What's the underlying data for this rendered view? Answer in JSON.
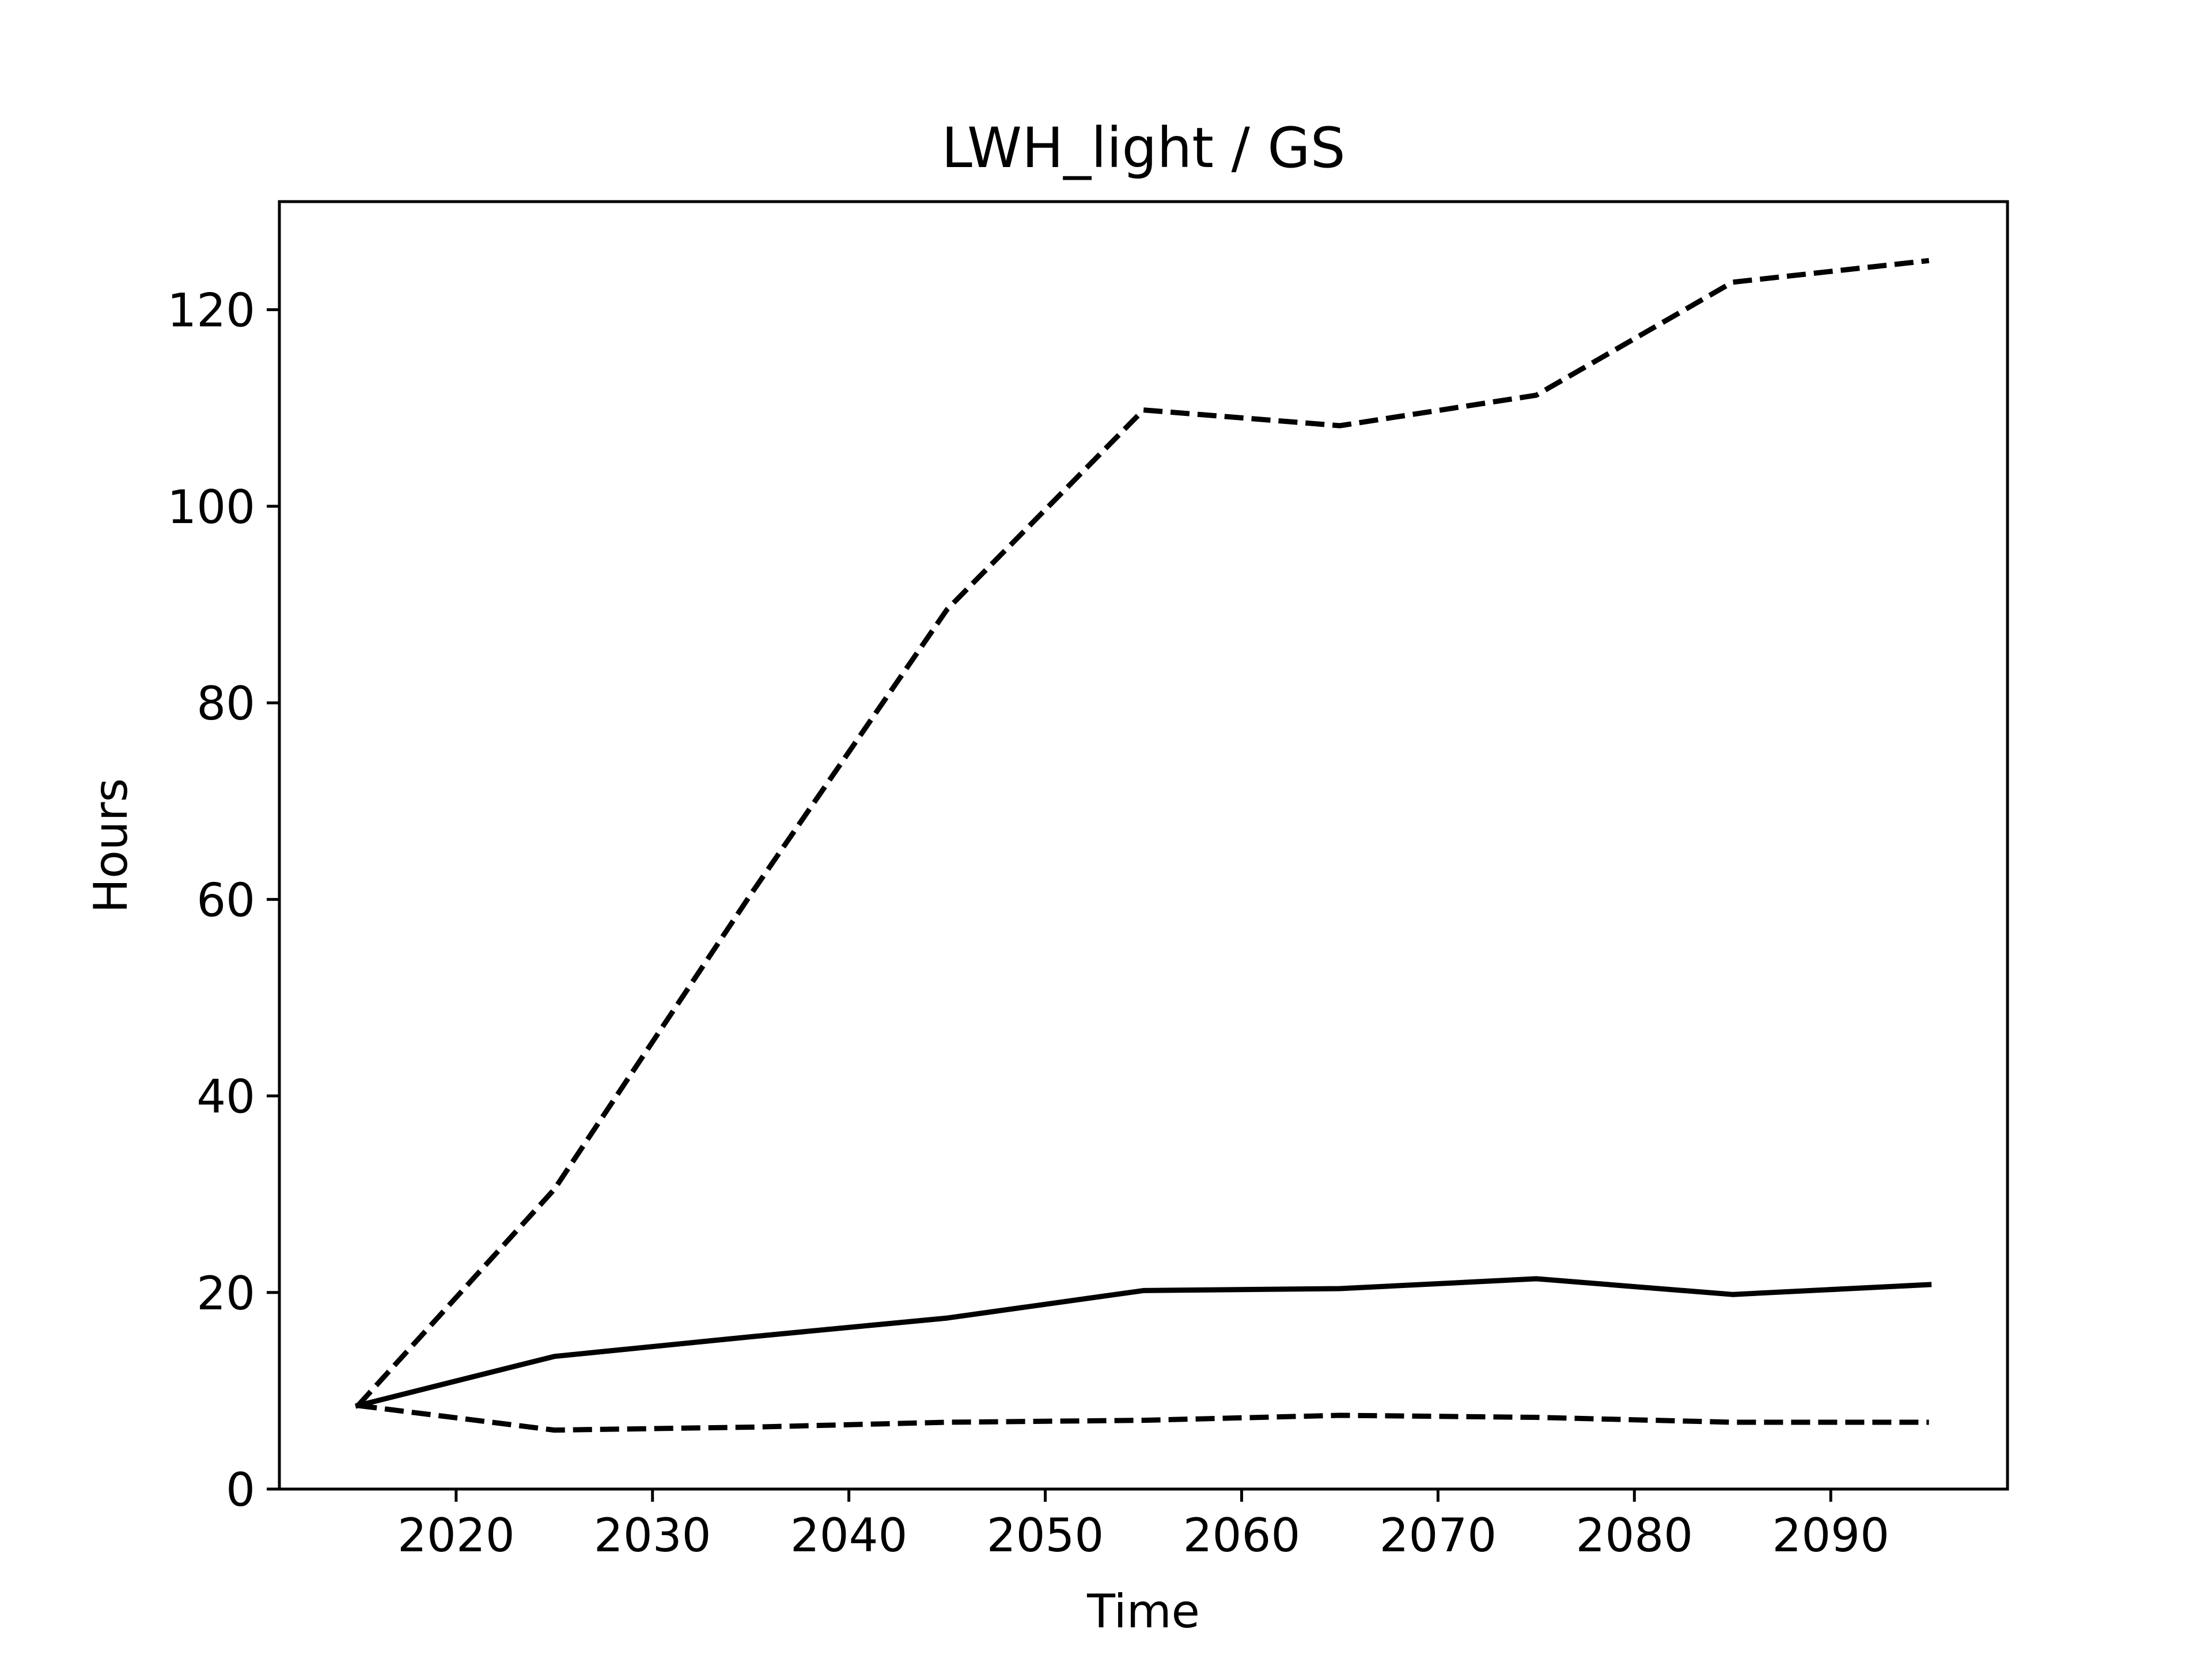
{
  "chart_data": {
    "type": "line",
    "title": "LWH_light / GS",
    "xlabel": "Time",
    "ylabel": "Hours",
    "xlim": [
      2011,
      2099
    ],
    "ylim": [
      0,
      131
    ],
    "xticks": [
      2020,
      2030,
      2040,
      2050,
      2060,
      2070,
      2080,
      2090
    ],
    "yticks": [
      0,
      20,
      40,
      60,
      80,
      100,
      120
    ],
    "grid": false,
    "legend": "none",
    "x": [
      2015,
      2025,
      2035,
      2045,
      2055,
      2065,
      2075,
      2085,
      2095
    ],
    "series": [
      {
        "style": "dashed",
        "color": "#000000",
        "values": [
          8.5,
          30.5,
          60.5,
          89.5,
          109.8,
          108.2,
          111.3,
          122.8,
          125.0
        ]
      },
      {
        "style": "solid",
        "color": "#000000",
        "values": [
          8.5,
          13.5,
          15.5,
          17.4,
          20.2,
          20.4,
          21.4,
          19.8,
          20.8
        ]
      },
      {
        "style": "dashed",
        "color": "#000000",
        "values": [
          8.5,
          6.0,
          6.3,
          6.8,
          7.0,
          7.5,
          7.3,
          6.8,
          6.8
        ]
      }
    ]
  }
}
